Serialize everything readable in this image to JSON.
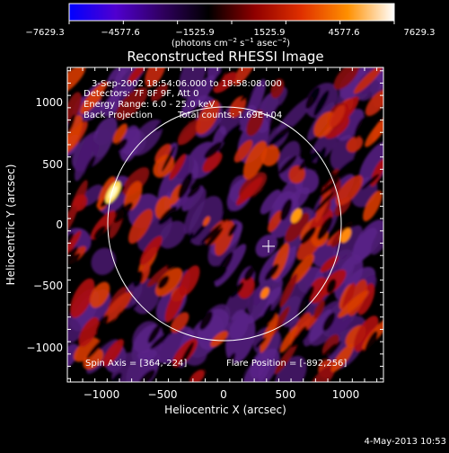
{
  "colorbar": {
    "ticks": [
      "−7629.3",
      "−4577.6",
      "−1525.9",
      "1525.9",
      "4577.6",
      "7629.3"
    ],
    "units_prefix": "(photons cm",
    "units_exp1": "−2",
    "units_mid": " s",
    "units_exp2": "−1",
    "units_mid2": " asec",
    "units_exp3": "−2",
    "units_suffix": ")",
    "stops": [
      "#0000ff",
      "#5000d0",
      "#300060",
      "#000000",
      "#900000",
      "#e03000",
      "#ff9000",
      "#ffffff"
    ]
  },
  "plot": {
    "title": "Reconstructed RHESSI Image",
    "xlabel": "Heliocentric X (arcsec)",
    "ylabel": "Heliocentric Y (arcsec)",
    "xticks": [
      "−1000",
      "−500",
      "0",
      "500",
      "1000"
    ],
    "yticks": [
      "1000",
      "500",
      "0",
      "−500",
      "−1000"
    ],
    "xlim": [
      -1280,
      1290
    ],
    "ylim": [
      -1280,
      1240
    ]
  },
  "info": {
    "time_range": "3-Sep-2002 18:54:06.000 to 18:58:08.000",
    "detectors": "Detectors: 7F 8F 9F, Att 0",
    "energy": "Energy Range: 6.0 - 25.0 keV",
    "method": "Back Projection",
    "counts": "Total counts: 1.69E+04",
    "spin_axis": "Spin Axis = [364,-224]",
    "flare_position": "Flare Position = [-892,256]",
    "timestamp": "4-May-2013 10:53"
  },
  "image": {
    "sun_radius_arcsec": 950,
    "sun_center_arcsec": [
      0,
      0
    ],
    "spin_axis_arcsec": [
      364,
      -224
    ],
    "flare_arcsec": [
      -892,
      256
    ]
  }
}
